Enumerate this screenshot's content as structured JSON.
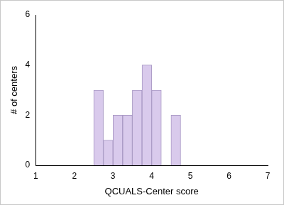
{
  "chart_data": {
    "type": "histogram",
    "x_label": "QCUALS-Center score",
    "y_label": "# of centers",
    "bins": [
      2.5,
      2.75,
      3.0,
      3.25,
      3.5,
      3.75,
      4.0,
      4.25,
      4.5,
      4.75
    ],
    "values": [
      3,
      1,
      2,
      2,
      3,
      4,
      3,
      0,
      2
    ],
    "color": "#d9caec",
    "xlim": [
      1,
      7
    ],
    "xticks": [
      1,
      2,
      3,
      4,
      5,
      6,
      7
    ],
    "ylim": [
      0,
      6
    ],
    "yticks": [
      0,
      2,
      4,
      6
    ],
    "grid": false
  }
}
